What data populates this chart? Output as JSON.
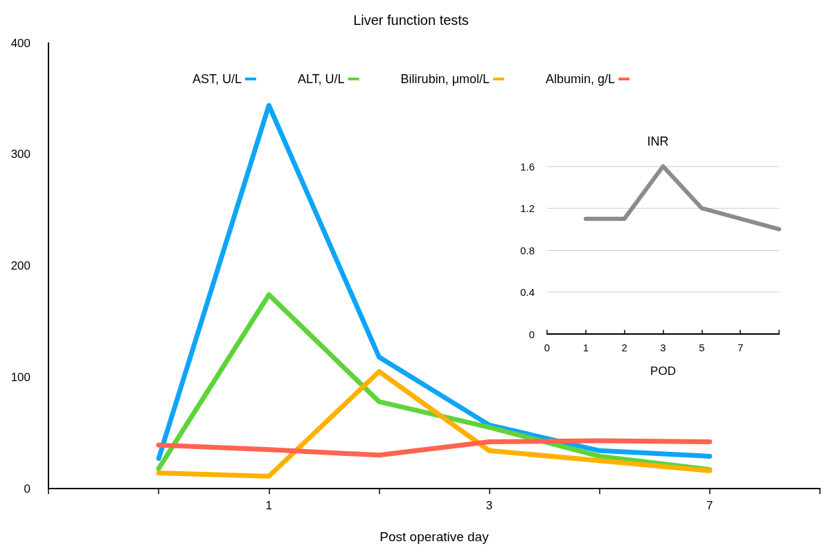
{
  "chart_data": [
    {
      "type": "line",
      "title": "Liver function tests",
      "xlabel": "Post operative day",
      "categories": [
        null,
        null,
        "1",
        null,
        "3",
        null,
        "7",
        null
      ],
      "series": [
        {
          "name": "AST, U/L",
          "color": "#0fa5f7",
          "values": [
            null,
            27,
            344,
            118,
            57,
            34,
            29,
            null
          ]
        },
        {
          "name": "ALT, U/L",
          "color": "#5dd43a",
          "values": [
            null,
            18,
            174,
            78,
            55,
            29,
            17,
            null
          ]
        },
        {
          "name": "Bilirubin, μmol/L",
          "color": "#ffb000",
          "values": [
            null,
            14,
            11,
            105,
            34,
            25,
            16,
            null
          ]
        },
        {
          "name": "Albumin, g/L",
          "color": "#ff6450",
          "values": [
            null,
            39,
            35,
            30,
            42,
            43,
            42,
            null
          ]
        }
      ],
      "ylim": [
        0,
        400
      ],
      "yticks": [
        0,
        100,
        200,
        300,
        400
      ],
      "grid": false,
      "legend": "top",
      "marker": "none",
      "line_style": "solid"
    },
    {
      "type": "line",
      "title": "INR",
      "xlabel": "POD",
      "categories": [
        "0",
        "1",
        "2",
        "3",
        "5",
        "7",
        null
      ],
      "series": [
        {
          "color": "#8c8c8c",
          "values": [
            null,
            1.1,
            1.1,
            1.6,
            1.2,
            1.1,
            1.0
          ]
        }
      ],
      "ylim": [
        0,
        1.6
      ],
      "yticks": [
        0,
        0.4,
        0.8,
        1.2,
        1.6
      ],
      "grid": "y",
      "legend": false,
      "marker": "none",
      "line_style": "solid"
    }
  ]
}
